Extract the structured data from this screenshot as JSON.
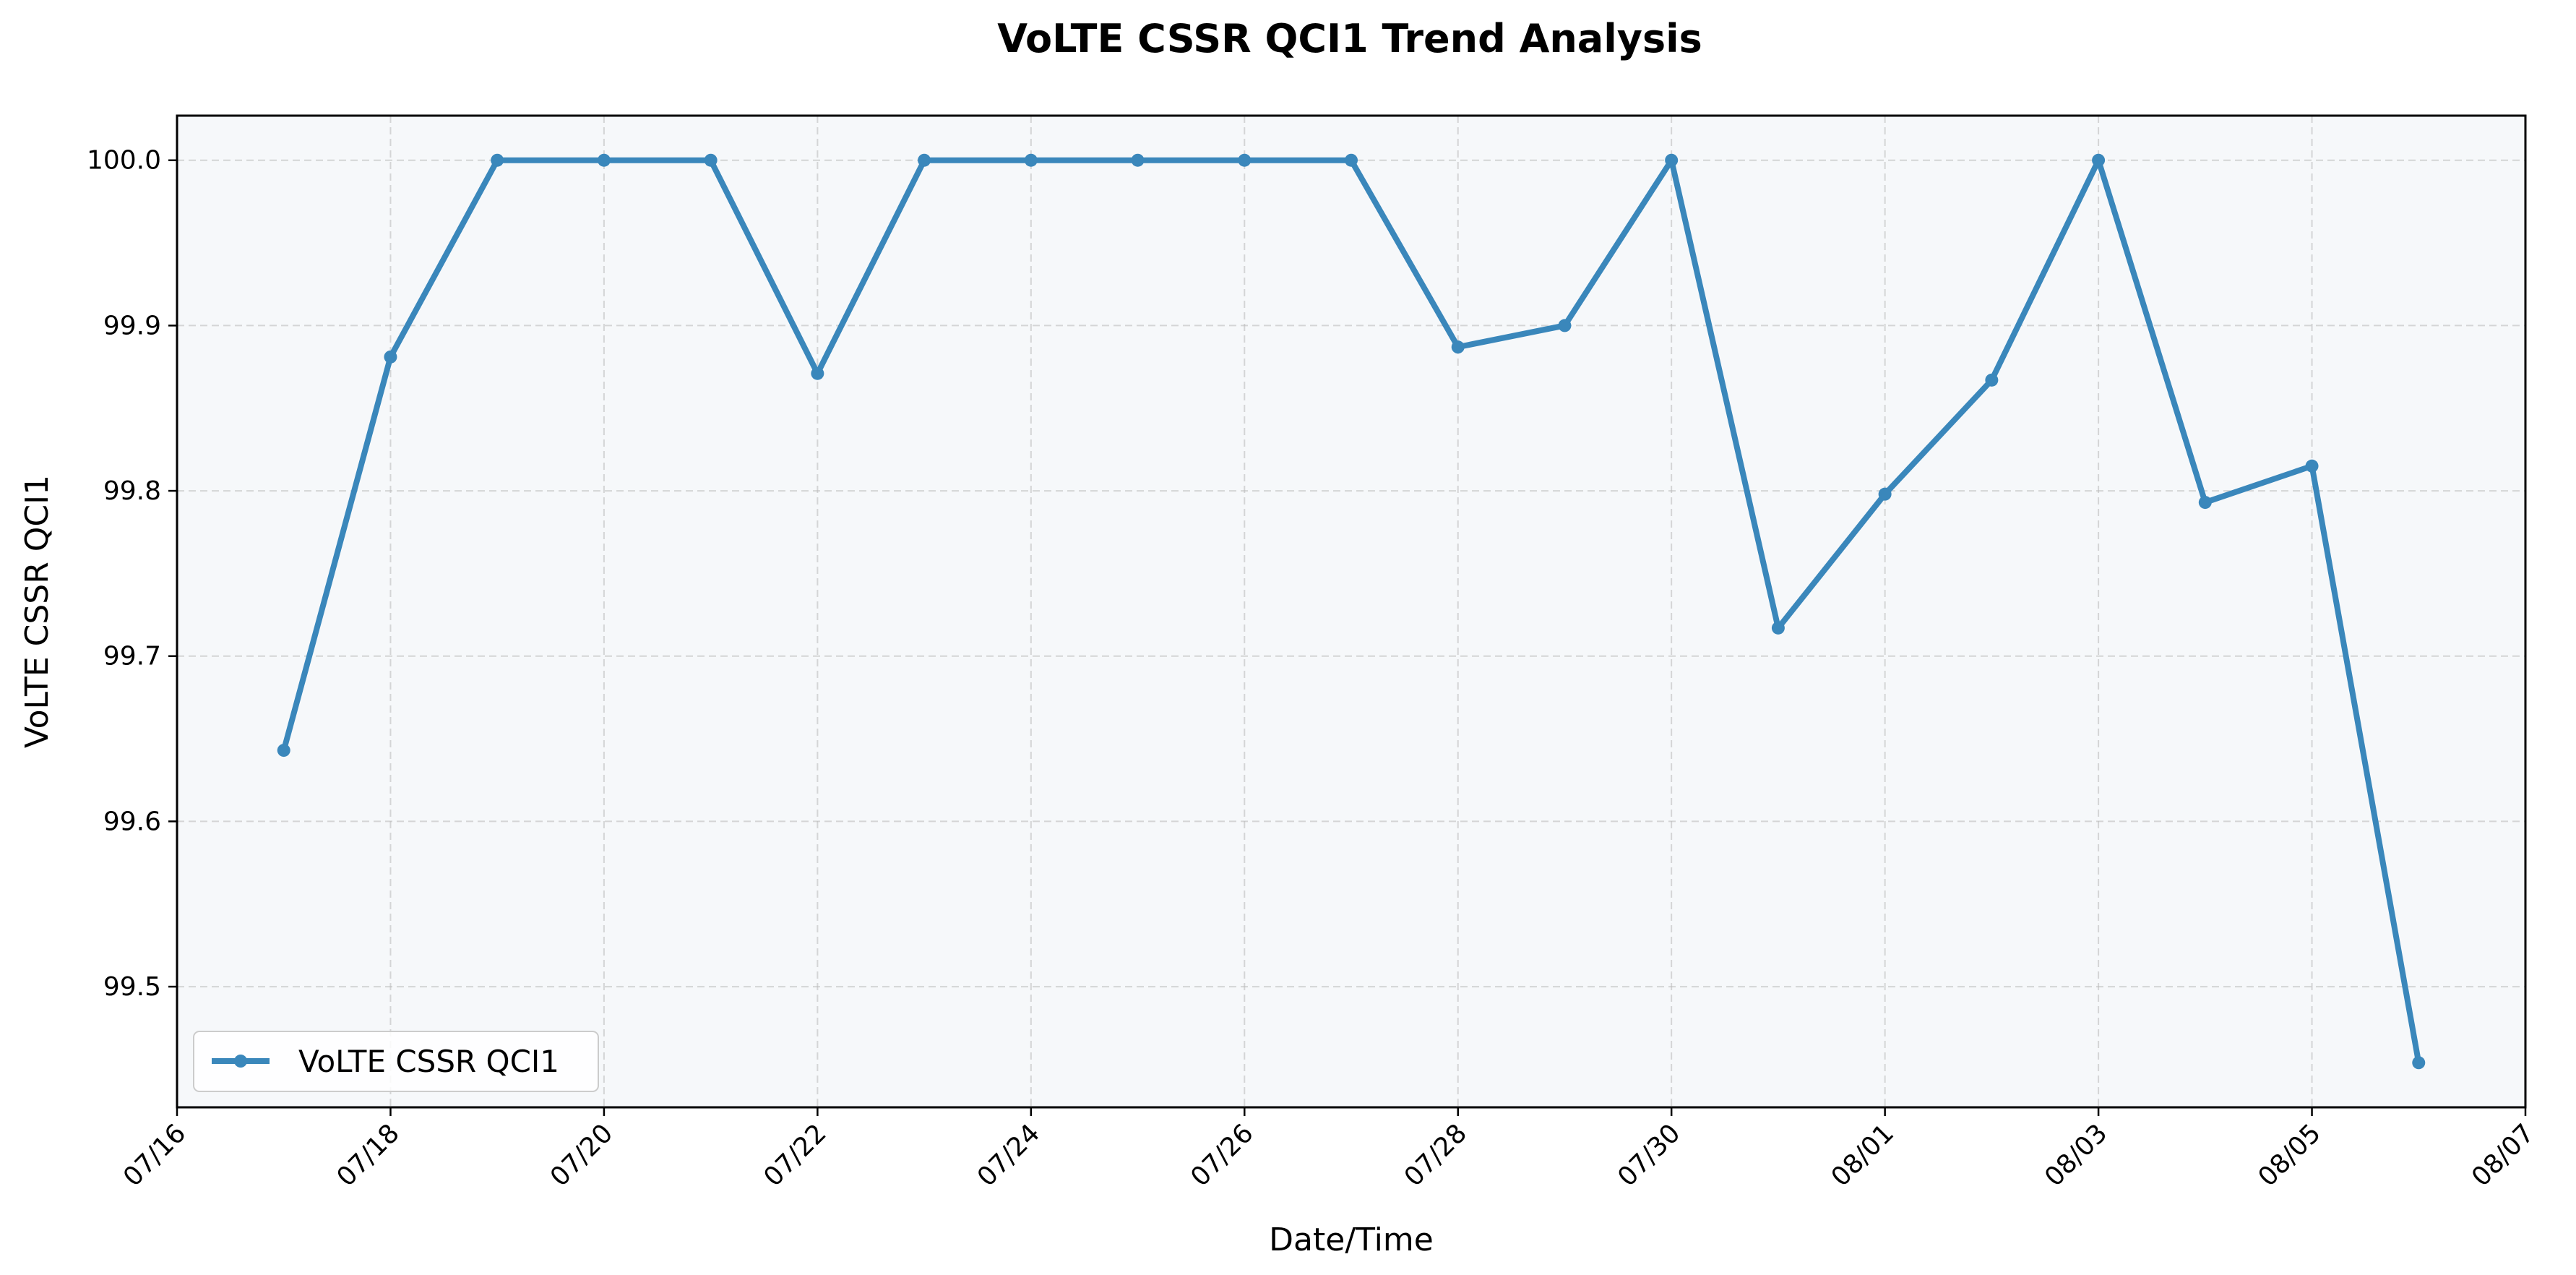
{
  "chart_data": {
    "type": "line",
    "title": "VoLTE CSSR QCI1 Trend Analysis",
    "xlabel": "Date/Time",
    "ylabel": "VoLTE CSSR QCI1",
    "x_ticks": [
      "07/16",
      "07/18",
      "07/20",
      "07/22",
      "07/24",
      "07/26",
      "07/28",
      "07/30",
      "08/01",
      "08/03",
      "08/05",
      "08/07"
    ],
    "y_ticks": [
      "99.5",
      "99.6",
      "99.7",
      "99.8",
      "99.9",
      "100.0"
    ],
    "ylim": [
      99.427,
      100.027
    ],
    "xlim": [
      "07/16",
      "08/07"
    ],
    "x": [
      "07/17",
      "07/18",
      "07/19",
      "07/20",
      "07/21",
      "07/22",
      "07/23",
      "07/24",
      "07/25",
      "07/26",
      "07/27",
      "07/28",
      "07/29",
      "07/30",
      "07/31",
      "08/01",
      "08/02",
      "08/03",
      "08/04",
      "08/05",
      "08/06"
    ],
    "series": [
      {
        "name": "VoLTE CSSR QCI1",
        "color": "#3a87bb",
        "values": [
          99.643,
          99.881,
          100.0,
          100.0,
          100.0,
          99.871,
          100.0,
          100.0,
          100.0,
          100.0,
          100.0,
          99.887,
          99.9,
          100.0,
          99.717,
          99.798,
          99.867,
          100.0,
          99.793,
          99.815,
          99.454
        ]
      }
    ],
    "grid": true,
    "legend_position": "bottom-left",
    "plot_background": "#f6f8fa"
  }
}
